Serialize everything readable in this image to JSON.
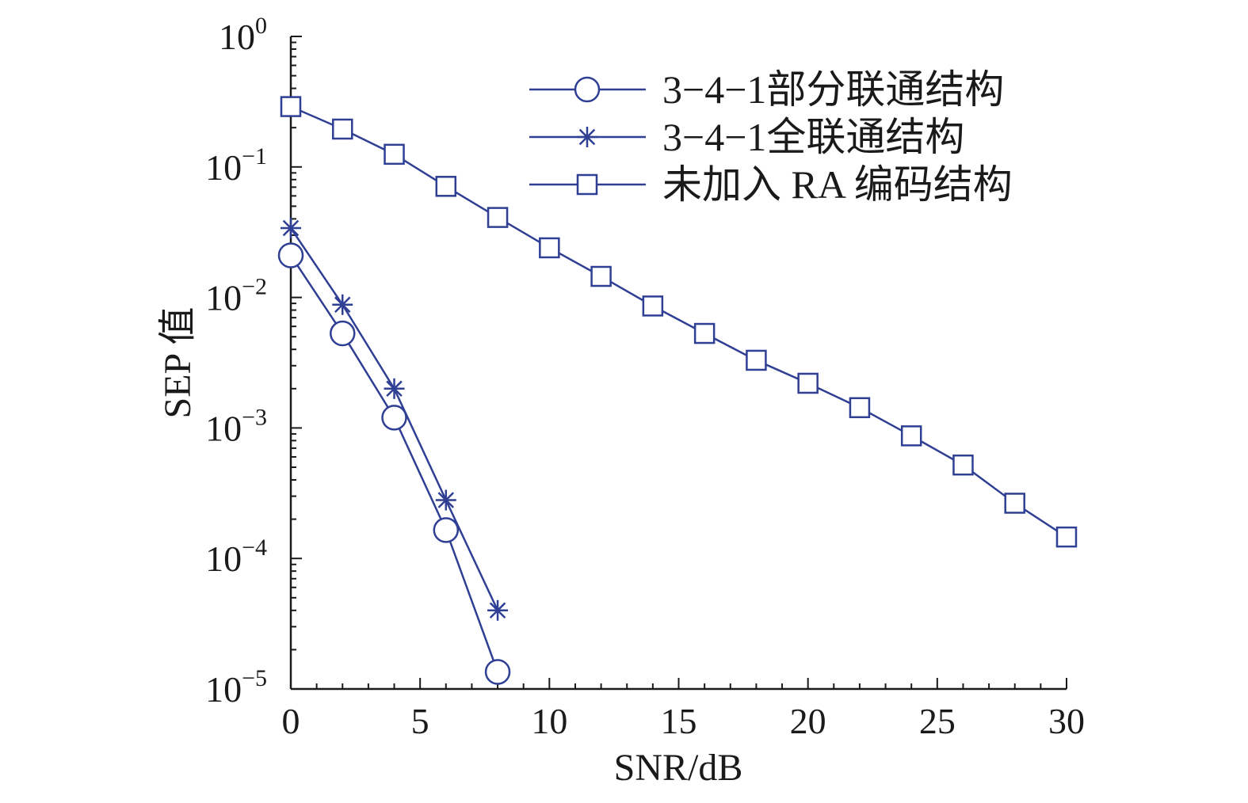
{
  "chart_data": {
    "type": "line",
    "title": "",
    "xlabel": "SNR/dB",
    "ylabel": "SEP 值",
    "xlim": [
      0,
      30
    ],
    "ylim": [
      1e-05,
      1
    ],
    "yscale": "log",
    "x_ticks": [
      0,
      5,
      10,
      15,
      20,
      25,
      30
    ],
    "x_tick_labels": [
      "0",
      "5",
      "10",
      "15",
      "20",
      "25",
      "30"
    ],
    "y_ticks": [
      {
        "value": 1,
        "base": "10",
        "exp": "0"
      },
      {
        "value": 0.1,
        "base": "10",
        "exp": "−1"
      },
      {
        "value": 0.01,
        "base": "10",
        "exp": "−2"
      },
      {
        "value": 0.001,
        "base": "10",
        "exp": "−3"
      },
      {
        "value": 0.0001,
        "base": "10",
        "exp": "−4"
      },
      {
        "value": 1e-05,
        "base": "10",
        "exp": "−5"
      }
    ],
    "grid": false,
    "legend_position": "top-right",
    "color": "#2e3f94",
    "series": [
      {
        "name": "3−4−1部分联通结构",
        "marker": "circle",
        "x": [
          0,
          2,
          4,
          6,
          8
        ],
        "y": [
          0.021,
          0.0053,
          0.0012,
          0.000165,
          1.35e-05
        ]
      },
      {
        "name": "3−4−1全联通结构",
        "marker": "asterisk",
        "x": [
          0,
          2,
          4,
          6,
          8
        ],
        "y": [
          0.034,
          0.0088,
          0.002,
          0.00028,
          4e-05
        ]
      },
      {
        "name": "未加入 RA 编码结构",
        "marker": "square",
        "x": [
          0,
          2,
          4,
          6,
          8,
          10,
          12,
          14,
          16,
          18,
          20,
          22,
          24,
          26,
          28,
          30
        ],
        "y": [
          0.29,
          0.195,
          0.125,
          0.071,
          0.041,
          0.024,
          0.0145,
          0.0086,
          0.0053,
          0.0033,
          0.0022,
          0.00143,
          0.00087,
          0.00052,
          0.000265,
          0.000146
        ]
      }
    ]
  }
}
